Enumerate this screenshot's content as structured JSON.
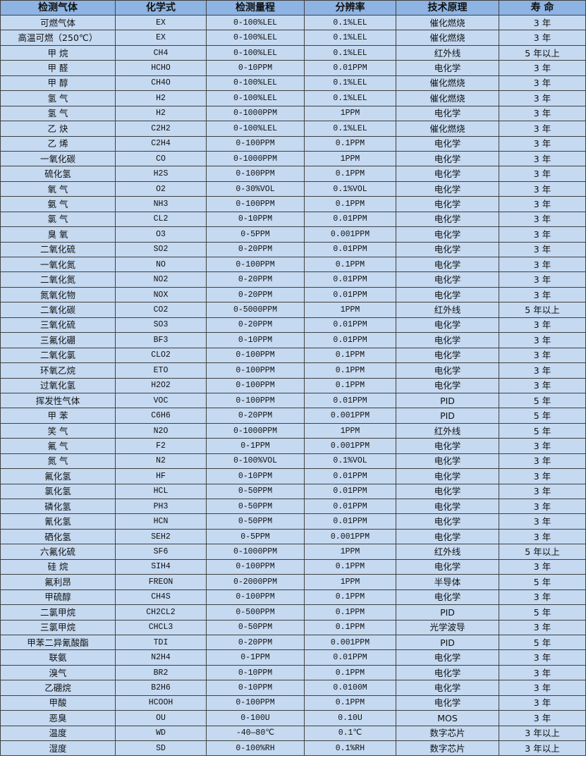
{
  "colors": {
    "header_bg": "#8db4e2",
    "row_bg": "#c5d9f1",
    "border": "#404040"
  },
  "headers": [
    "检测气体",
    "化学式",
    "检测量程",
    "分辨率",
    "技术原理",
    "寿 命"
  ],
  "rows": [
    [
      "可燃气体",
      "EX",
      "0-100%LEL",
      "0.1%LEL",
      "催化燃烧",
      "3 年"
    ],
    [
      "高温可燃（250℃）",
      "EX",
      "0-100%LEL",
      "0.1%LEL",
      "催化燃烧",
      "3 年"
    ],
    [
      "甲 烷",
      "CH4",
      "0-100%LEL",
      "0.1%LEL",
      "红外线",
      "5 年以上"
    ],
    [
      "甲 醛",
      "HCHO",
      "0-10PPM",
      "0.01PPM",
      "电化学",
      "3 年"
    ],
    [
      "甲 醇",
      "CH4O",
      "0-100%LEL",
      "0.1%LEL",
      "催化燃烧",
      "3 年"
    ],
    [
      "氢 气",
      "H2",
      "0-100%LEL",
      "0.1%LEL",
      "催化燃烧",
      "3 年"
    ],
    [
      "氢 气",
      "H2",
      "0-1000PPM",
      "1PPM",
      "电化学",
      "3 年"
    ],
    [
      "乙 炔",
      "C2H2",
      "0-100%LEL",
      "0.1%LEL",
      "催化燃烧",
      "3 年"
    ],
    [
      "乙 烯",
      "C2H4",
      "0-100PPM",
      "0.1PPM",
      "电化学",
      "3 年"
    ],
    [
      "一氧化碳",
      "CO",
      "0-1000PPM",
      "1PPM",
      "电化学",
      "3 年"
    ],
    [
      "硫化氢",
      "H2S",
      "0-100PPM",
      "0.1PPM",
      "电化学",
      "3 年"
    ],
    [
      "氧 气",
      "O2",
      "0-30%VOL",
      "0.1%VOL",
      "电化学",
      "3 年"
    ],
    [
      "氨 气",
      "NH3",
      "0-100PPM",
      "0.1PPM",
      "电化学",
      "3 年"
    ],
    [
      "氯 气",
      "CL2",
      "0-10PPM",
      "0.01PPM",
      "电化学",
      "3 年"
    ],
    [
      "臭 氧",
      "O3",
      "0-5PPM",
      "0.001PPM",
      "电化学",
      "3 年"
    ],
    [
      "二氧化硫",
      "SO2",
      "0-20PPM",
      "0.01PPM",
      "电化学",
      "3 年"
    ],
    [
      "一氧化氮",
      "NO",
      "0-100PPM",
      "0.1PPM",
      "电化学",
      "3 年"
    ],
    [
      "二氧化氮",
      "NO2",
      "0-20PPM",
      "0.01PPM",
      "电化学",
      "3 年"
    ],
    [
      "氮氧化物",
      "NOX",
      "0-20PPM",
      "0.01PPM",
      "电化学",
      "3 年"
    ],
    [
      "二氧化碳",
      "CO2",
      "0-5000PPM",
      "1PPM",
      "红外线",
      "5 年以上"
    ],
    [
      "三氧化硫",
      "SO3",
      "0-20PPM",
      "0.01PPM",
      "电化学",
      "3 年"
    ],
    [
      "三氟化硼",
      "BF3",
      "0-10PPM",
      "0.01PPM",
      "电化学",
      "3 年"
    ],
    [
      "二氧化氯",
      "CLO2",
      "0-100PPM",
      "0.1PPM",
      "电化学",
      "3 年"
    ],
    [
      "环氧乙烷",
      "ETO",
      "0-100PPM",
      "0.1PPM",
      "电化学",
      "3 年"
    ],
    [
      "过氧化氢",
      "H2O2",
      "0-100PPM",
      "0.1PPM",
      "电化学",
      "3 年"
    ],
    [
      "挥发性气体",
      "VOC",
      "0-100PPM",
      "0.01PPM",
      "PID",
      "5 年"
    ],
    [
      "甲 苯",
      "C6H6",
      "0-20PPM",
      "0.001PPM",
      "PID",
      "5 年"
    ],
    [
      "笑 气",
      "N2O",
      "0-1000PPM",
      "1PPM",
      "红外线",
      "5 年"
    ],
    [
      "氟 气",
      "F2",
      "0-1PPM",
      "0.001PPM",
      "电化学",
      "3 年"
    ],
    [
      "氮 气",
      "N2",
      "0-100%VOL",
      "0.1%VOL",
      "电化学",
      "3 年"
    ],
    [
      "氟化氢",
      "HF",
      "0-10PPM",
      "0.01PPM",
      "电化学",
      "3 年"
    ],
    [
      "氯化氢",
      "HCL",
      "0-50PPM",
      "0.01PPM",
      "电化学",
      "3 年"
    ],
    [
      "磷化氢",
      "PH3",
      "0-50PPM",
      "0.01PPM",
      "电化学",
      "3 年"
    ],
    [
      "氰化氢",
      "HCN",
      "0-50PPM",
      "0.01PPM",
      "电化学",
      "3 年"
    ],
    [
      "硒化氢",
      "SEH2",
      "0-5PPM",
      "0.001PPM",
      "电化学",
      "3 年"
    ],
    [
      "六氟化硫",
      "SF6",
      "0-1000PPM",
      "1PPM",
      "红外线",
      "5 年以上"
    ],
    [
      "硅 烷",
      "SIH4",
      "0-100PPM",
      "0.1PPM",
      "电化学",
      "3 年"
    ],
    [
      "氟利昂",
      "FREON",
      "0-2000PPM",
      "1PPM",
      "半导体",
      "5 年"
    ],
    [
      "甲硫醇",
      "CH4S",
      "0-100PPM",
      "0.1PPM",
      "电化学",
      "3 年"
    ],
    [
      "二氯甲烷",
      "CH2CL2",
      "0-500PPM",
      "0.1PPM",
      "PID",
      "5 年"
    ],
    [
      "三氯甲烷",
      "CHCL3",
      "0-50PPM",
      "0.1PPM",
      "光学波导",
      "3 年"
    ],
    [
      "甲苯二异氰酸酯",
      "TDI",
      "0-20PPM",
      "0.001PPM",
      "PID",
      "5 年"
    ],
    [
      "联氨",
      "N2H4",
      "0-1PPM",
      "0.01PPM",
      "电化学",
      "3 年"
    ],
    [
      "溴气",
      "BR2",
      "0-10PPM",
      "0.1PPM",
      "电化学",
      "3 年"
    ],
    [
      "乙硼烷",
      "B2H6",
      "0-10PPM",
      "0.0100M",
      "电化学",
      "3 年"
    ],
    [
      "甲酸",
      "HCOOH",
      "0-100PPM",
      "0.1PPM",
      "电化学",
      "3 年"
    ],
    [
      "恶臭",
      "OU",
      "0-100U",
      "0.10U",
      "MOS",
      "3 年"
    ],
    [
      "温度",
      "WD",
      "-40—80℃",
      "0.1℃",
      "数字芯片",
      "3 年以上"
    ],
    [
      "湿度",
      "SD",
      "0-100%RH",
      "0.1%RH",
      "数字芯片",
      "3 年以上"
    ]
  ]
}
